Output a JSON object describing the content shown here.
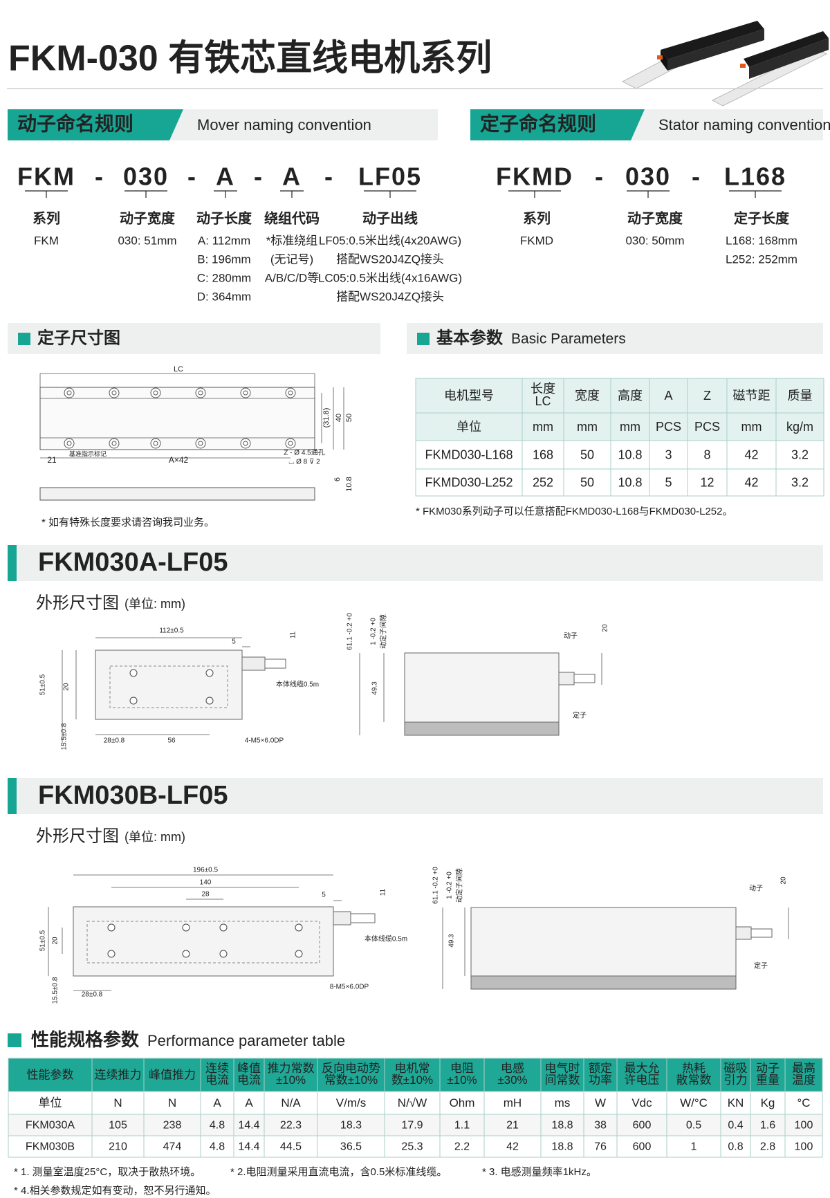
{
  "header": {
    "title": "FKM-030 有铁芯直线电机系列"
  },
  "mover_naming": {
    "title_cn": "动子命名规则",
    "title_en": "Mover naming convention",
    "code": [
      "FKM",
      "-",
      "030",
      "-",
      "A",
      "-",
      "A",
      "-",
      "LF05"
    ],
    "fields": [
      {
        "label": "系列",
        "lines": [
          "FKM"
        ]
      },
      {
        "label": "动子宽度",
        "lines": [
          "030: 51mm"
        ]
      },
      {
        "label": "动子长度",
        "lines": [
          "A: 112mm",
          "B: 196mm",
          "C: 280mm",
          "D: 364mm"
        ]
      },
      {
        "label": "绕组代码",
        "lines": [
          "*标准绕组",
          "(无记号)",
          "A/B/C/D等"
        ]
      },
      {
        "label": "动子出线",
        "lines": [
          "LF05:0.5米出线(4x20AWG)",
          "搭配WS20J4ZQ接头",
          "LC05:0.5米出线(4x16AWG)",
          "搭配WS20J4ZQ接头"
        ]
      }
    ]
  },
  "stator_naming": {
    "title_cn": "定子命名规则",
    "title_en": "Stator naming convention",
    "code": [
      "FKMD",
      "-",
      "030",
      "-",
      "L168"
    ],
    "fields": [
      {
        "label": "系列",
        "lines": [
          "FKMD"
        ]
      },
      {
        "label": "动子宽度",
        "lines": [
          "030: 50mm"
        ]
      },
      {
        "label": "定子长度",
        "lines": [
          "L168: 168mm",
          "L252: 252mm"
        ]
      }
    ]
  },
  "stator_drawing": {
    "title": "定子尺寸图",
    "labels": [
      "LC",
      "21",
      "基准指示标记",
      "A×42",
      "Z - Ø 4.5通孔",
      "⌴ Ø 8 ⊽ 2",
      "(31.8)",
      "40",
      "50",
      "6",
      "10.8"
    ],
    "note": "* 如有特殊长度要求请咨询我司业务。"
  },
  "basic_params": {
    "title_cn": "基本参数",
    "title_en": "Basic Parameters",
    "header": [
      "电机型号",
      [
        "长度",
        "LC"
      ],
      "宽度",
      "高度",
      "A",
      "Z",
      "磁节距",
      "质量"
    ],
    "units": [
      "单位",
      "mm",
      "mm",
      "mm",
      "PCS",
      "PCS",
      "mm",
      "kg/m"
    ],
    "rows": [
      [
        "FKMD030-L168",
        168,
        50,
        10.8,
        3,
        8,
        42,
        3.2
      ],
      [
        "FKMD030-L252",
        252,
        50,
        10.8,
        5,
        12,
        42,
        3.2
      ]
    ],
    "note": "* FKM030系列动子可以任意搭配FKMD030-L168与FKMD030-L252。"
  },
  "fkm030a": {
    "title": "FKM030A-LF05",
    "subtitle": "外形尺寸图",
    "unit": "(单位: mm)",
    "labels": [
      "112±0.5",
      "5",
      "11",
      "51±0.5",
      "20",
      "15.5±0.8",
      "28±0.8",
      "56",
      "4-M5×6.0DP",
      "本体线缆0.5m",
      "61.1 -0.2 +0",
      "1 -0.2 +0",
      "动定子间隙",
      "49.3",
      "动子",
      "20",
      "定子"
    ]
  },
  "fkm030b": {
    "title": "FKM030B-LF05",
    "subtitle": "外形尺寸图",
    "unit": "(单位: mm)",
    "labels": [
      "196±0.5",
      "140",
      "28",
      "5",
      "11",
      "51±0.5",
      "20",
      "15.5±0.8",
      "28±0.8",
      "8-M5×6.0DP",
      "本体线缆0.5m",
      "61.1 -0.2 +0",
      "1 -0.2 +0",
      "动定子间隙",
      "49.3",
      "动子",
      "20",
      "定子"
    ]
  },
  "performance": {
    "title_cn": "性能规格参数",
    "title_en": "Performance parameter table",
    "header": [
      "性能参数",
      "连续推力",
      "峰值推力",
      [
        "连续",
        "电流"
      ],
      [
        "峰值",
        "电流"
      ],
      [
        "推力常数",
        "±10%"
      ],
      [
        "反向电动势",
        "常数±10%"
      ],
      [
        "电机常",
        "数±10%"
      ],
      [
        "电阻",
        "±10%"
      ],
      [
        "电感",
        "±30%"
      ],
      [
        "电气时",
        "间常数"
      ],
      [
        "额定",
        "功率"
      ],
      [
        "最大允",
        "许电压"
      ],
      [
        "热耗",
        "散常数"
      ],
      [
        "磁吸",
        "引力"
      ],
      [
        "动子",
        "重量"
      ],
      [
        "最高",
        "温度"
      ]
    ],
    "units": [
      "单位",
      "N",
      "N",
      "A",
      "A",
      "N/A",
      "V/m/s",
      "N/√W",
      "Ohm",
      "mH",
      "ms",
      "W",
      "Vdc",
      "W/°C",
      "KN",
      "Kg",
      "°C"
    ],
    "rows": [
      [
        "FKM030A",
        105,
        238,
        4.8,
        14.4,
        22.3,
        18.3,
        17.9,
        1.1,
        21,
        18.8,
        38,
        600,
        0.5,
        0.4,
        1.6,
        100
      ],
      [
        "FKM030B",
        210,
        474,
        4.8,
        14.4,
        44.5,
        36.5,
        25.3,
        2.2,
        42,
        18.8,
        76,
        600,
        1,
        0.8,
        2.8,
        100
      ]
    ],
    "notes": [
      "* 1. 测量室温度25°C，取决于散热环境。",
      "* 2.电阻测量采用直流电流，含0.5米标准线缆。",
      "* 3. 电感测量频率1kHz。",
      "* 4.相关参数规定如有变动，恕不另行通知。"
    ]
  }
}
